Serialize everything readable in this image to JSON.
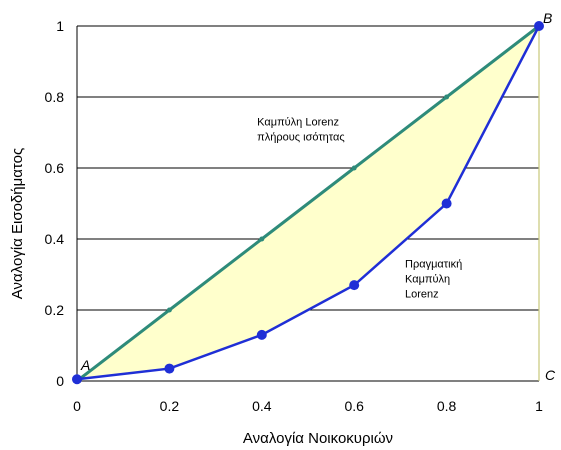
{
  "chart_data": {
    "type": "line",
    "xlabel": "Αναλογία Νοικοκυριών",
    "ylabel": "Αναλογία Εισοδήματος",
    "xlim": [
      0,
      1
    ],
    "ylim": [
      0,
      1
    ],
    "x_ticks": [
      "0",
      "0.2",
      "0.4",
      "0.6",
      "0.8",
      "1"
    ],
    "y_ticks": [
      "0",
      "0.2",
      "0.4",
      "0.6",
      "0.8",
      "1"
    ],
    "grid": "horizontal",
    "series": [
      {
        "color": "#2e8b7a",
        "points": [
          [
            0,
            0
          ],
          [
            0.2,
            0.2
          ],
          [
            0.4,
            0.4
          ],
          [
            0.6,
            0.6
          ],
          [
            0.8,
            0.8
          ],
          [
            1,
            1
          ]
        ]
      },
      {
        "color": "#1f2fd6",
        "points": [
          [
            0,
            0.005
          ],
          [
            0.2,
            0.035
          ],
          [
            0.4,
            0.13
          ],
          [
            0.6,
            0.27
          ],
          [
            0.8,
            0.5
          ],
          [
            1,
            1
          ]
        ]
      }
    ],
    "fill_color": "#ffffcc",
    "annotations": [
      {
        "lines": [
          "Καμπύλη Lorenz",
          "πλήρους ισότητας"
        ],
        "x": 0.39,
        "y": 0.72
      },
      {
        "lines": [
          "Πραγματική",
          "Καμπύλη",
          "Lorenz"
        ],
        "x": 0.71,
        "y": 0.32
      }
    ],
    "corner_labels": [
      {
        "text": "A",
        "x": 0,
        "y": 0
      },
      {
        "text": "B",
        "x": 1,
        "y": 1
      },
      {
        "text": "C",
        "x": 1,
        "y": 0
      }
    ]
  }
}
